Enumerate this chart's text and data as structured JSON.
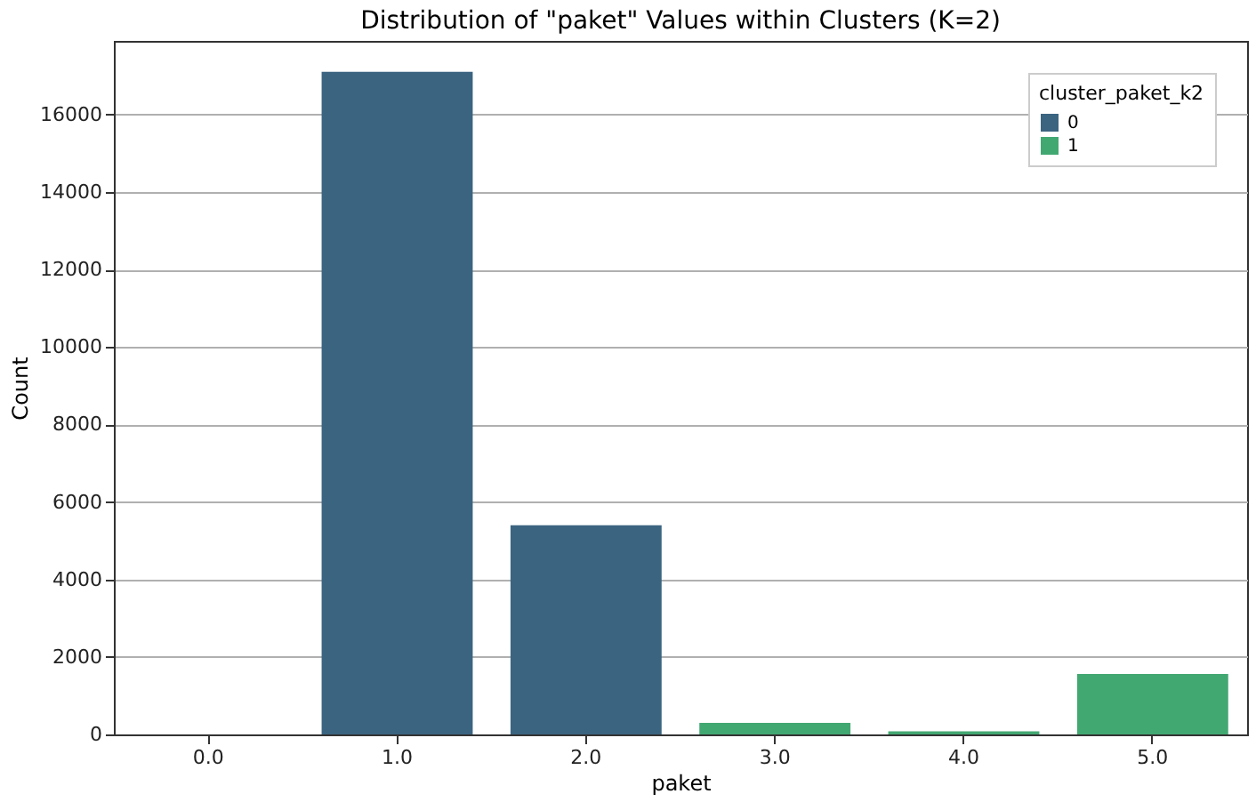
{
  "chart_data": {
    "type": "bar",
    "title": "Distribution of \"paket\" Values within Clusters (K=2)",
    "xlabel": "paket",
    "ylabel": "Count",
    "legend_title": "cluster_paket_k2",
    "categories": [
      "0.0",
      "1.0",
      "2.0",
      "3.0",
      "4.0",
      "5.0"
    ],
    "series": [
      {
        "name": "0",
        "color": "#3b6481",
        "values": [
          0,
          17100,
          5400,
          null,
          null,
          null
        ]
      },
      {
        "name": "1",
        "color": "#42a872",
        "values": [
          null,
          null,
          null,
          300,
          80,
          1560
        ]
      }
    ],
    "ylim": [
      0,
      17900
    ],
    "yticks": [
      0,
      2000,
      4000,
      6000,
      8000,
      10000,
      12000,
      14000,
      16000
    ],
    "grid": "y",
    "legend": "top right"
  }
}
